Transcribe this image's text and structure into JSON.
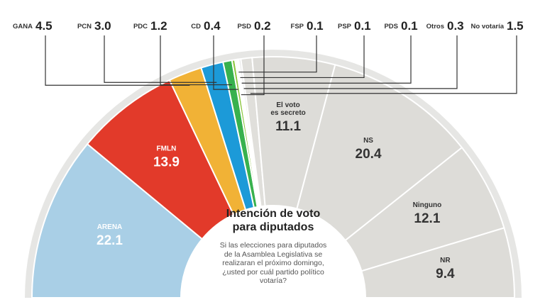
{
  "chart_data": {
    "type": "pie",
    "subtype": "semicircle",
    "title": [
      "Intención de voto",
      "para diputados"
    ],
    "question": [
      "Si las elecciones para diputados",
      "de la Asamblea Legislativa se",
      "realizaran el próximo domingo,",
      "¿usted por cuál partido político",
      "votaría?"
    ],
    "series": [
      {
        "name": "ARENA",
        "value": 22.1,
        "color": "#a9cfe6",
        "text_color": "#ffffff"
      },
      {
        "name": "FMLN",
        "value": 13.9,
        "color": "#e23a2a",
        "text_color": "#ffffff"
      },
      {
        "name": "GANA",
        "value": 4.5,
        "color": "#f1b236"
      },
      {
        "name": "PCN",
        "value": 3.0,
        "color": "#1c9ad8"
      },
      {
        "name": "PDC",
        "value": 1.2,
        "color": "#38b14e"
      },
      {
        "name": "CD",
        "value": 0.4,
        "color": "#8cc63f"
      },
      {
        "name": "PSD",
        "value": 0.2,
        "color": "#d5e04a"
      },
      {
        "name": "FSP",
        "value": 0.1,
        "color": "#f2ee9a"
      },
      {
        "name": "PSP",
        "value": 0.1,
        "color": "#f5f3c8"
      },
      {
        "name": "PDS",
        "value": 0.1,
        "color": "#f2f2f2"
      },
      {
        "name": "Otros",
        "value": 0.3,
        "color": "#e8e8e8"
      },
      {
        "name": "No votaría",
        "value": 1.5,
        "color": "#e0dfdb"
      },
      {
        "name": "El voto es secreto",
        "value": 11.1,
        "color": "#dddcd8",
        "text_color": "#333333"
      },
      {
        "name": "NS",
        "value": 20.4,
        "color": "#dddcd8",
        "text_color": "#333333"
      },
      {
        "name": "Ninguno",
        "value": 12.1,
        "color": "#dddcd8",
        "text_color": "#333333"
      },
      {
        "name": "NR",
        "value": 9.4,
        "color": "#dddcd8",
        "text_color": "#333333"
      }
    ],
    "top_legend": [
      {
        "name": "GANA",
        "value": "4.5"
      },
      {
        "name": "PCN",
        "value": "3.0"
      },
      {
        "name": "PDC",
        "value": "1.2"
      },
      {
        "name": "CD",
        "value": "0.4"
      },
      {
        "name": "PSD",
        "value": "0.2"
      },
      {
        "name": "FSP",
        "value": "0.1"
      },
      {
        "name": "PSP",
        "value": "0.1"
      },
      {
        "name": "PDS",
        "value": "0.1"
      },
      {
        "name": "Otros",
        "value": "0.3"
      },
      {
        "name": "No votaría",
        "value": "1.5"
      }
    ],
    "in_slice_labels": [
      {
        "name": "ARENA",
        "value": "22.1"
      },
      {
        "name": "FMLN",
        "value": "13.9"
      },
      {
        "name_lines": [
          "El voto",
          "es secreto"
        ],
        "value": "11.1"
      },
      {
        "name": "NS",
        "value": "20.4"
      },
      {
        "name": "Ninguno",
        "value": "12.1"
      },
      {
        "name": "NR",
        "value": "9.4"
      }
    ]
  }
}
